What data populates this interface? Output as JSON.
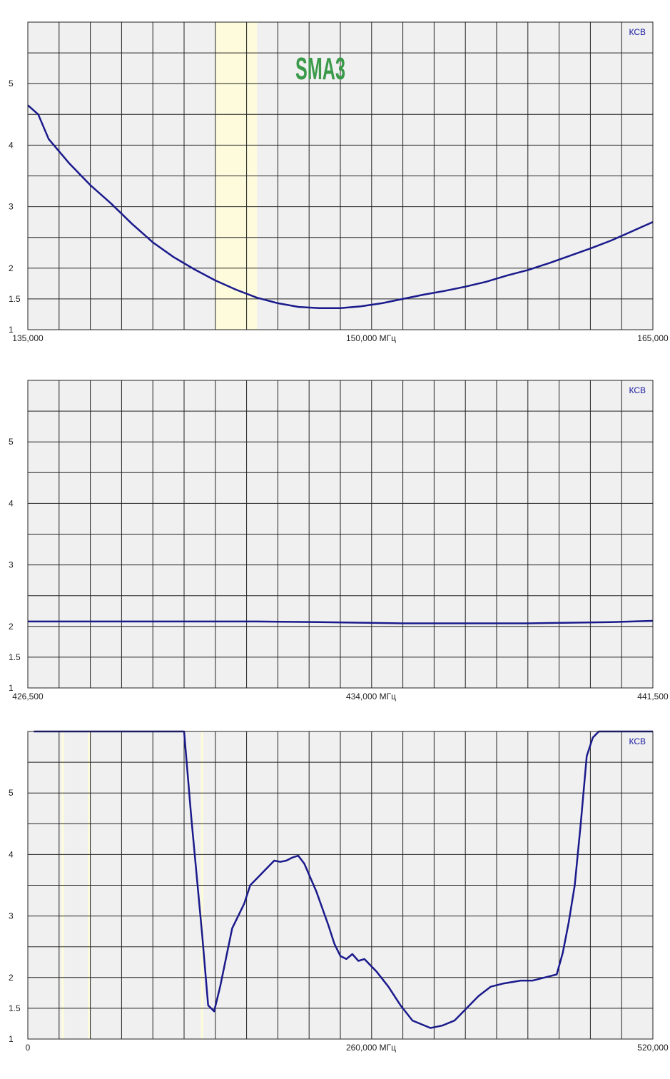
{
  "colors": {
    "background": "#ffffff",
    "plot_bg": "#f0f0f0",
    "grid": "#000000",
    "line": "#1a1a8c",
    "band": "#fdfbdc",
    "ksv_label": "#1a1aa0",
    "watermark": "#3a9a4a",
    "text": "#222222"
  },
  "chart_data": [
    {
      "type": "line",
      "title": "",
      "corner_label": "КСВ",
      "watermark": "SMA3",
      "x_tick_labels": [
        "135,000",
        "150,000 МГц",
        "165,000"
      ],
      "y_tick_labels": [
        "1",
        "1.5",
        "2",
        "3",
        "4",
        "5"
      ],
      "xlim": [
        135,
        165
      ],
      "y_ticks": [
        1,
        1.5,
        2,
        3,
        4,
        5
      ],
      "grid": true,
      "highlight_bands": [
        [
          144,
          146
        ]
      ],
      "series": [
        {
          "x": [
            135,
            135.5,
            136,
            137,
            138,
            139,
            140,
            141,
            142,
            143,
            144,
            145,
            146,
            147,
            148,
            149,
            150,
            151,
            152,
            153,
            154,
            155,
            156,
            157,
            158,
            159,
            160,
            161,
            162,
            163,
            164,
            165
          ],
          "y": [
            4.65,
            4.5,
            4.1,
            3.7,
            3.35,
            3.05,
            2.72,
            2.42,
            2.18,
            1.98,
            1.8,
            1.65,
            1.52,
            1.43,
            1.37,
            1.35,
            1.35,
            1.38,
            1.43,
            1.5,
            1.57,
            1.63,
            1.7,
            1.78,
            1.88,
            1.97,
            2.08,
            2.2,
            2.32,
            2.45,
            2.6,
            2.75
          ]
        }
      ]
    },
    {
      "type": "line",
      "title": "",
      "corner_label": "КСВ",
      "watermark": "",
      "x_tick_labels": [
        "426,500",
        "434,000 МГц",
        "441,500"
      ],
      "y_tick_labels": [
        "1",
        "1.5",
        "2",
        "3",
        "4",
        "5"
      ],
      "xlim": [
        426.5,
        441.5
      ],
      "y_ticks": [
        1,
        1.5,
        2,
        3,
        4,
        5
      ],
      "grid": true,
      "highlight_bands": [],
      "series": [
        {
          "x": [
            426.5,
            428,
            430,
            432,
            433.5,
            434.5,
            435.5,
            436.5,
            437.5,
            438.5,
            439.5,
            440.5,
            441.5
          ],
          "y": [
            2.08,
            2.08,
            2.08,
            2.08,
            2.07,
            2.06,
            2.05,
            2.05,
            2.05,
            2.05,
            2.06,
            2.07,
            2.09
          ]
        }
      ]
    },
    {
      "type": "line",
      "title": "",
      "corner_label": "КСВ",
      "watermark": "",
      "x_tick_labels": [
        "0",
        "260,000 МГц",
        "520,000"
      ],
      "y_tick_labels": [
        "1",
        "1.5",
        "2",
        "3",
        "4",
        "5"
      ],
      "xlim": [
        0,
        520
      ],
      "y_ticks": [
        1,
        1.5,
        2,
        3,
        4,
        5
      ],
      "grid": true,
      "highlight_bands": [
        [
          28,
          30
        ],
        [
          50,
          52
        ],
        [
          144,
          146
        ]
      ],
      "series": [
        {
          "x": [
            5,
            60,
            100,
            130,
            136,
            145,
            150,
            155,
            160,
            170,
            180,
            185,
            195,
            205,
            210,
            215,
            220,
            225,
            230,
            240,
            250,
            255,
            260,
            265,
            270,
            275,
            280,
            290,
            300,
            310,
            320,
            335,
            340,
            345,
            355,
            365,
            375,
            385,
            395,
            410,
            420,
            440,
            445,
            450,
            455,
            460,
            465,
            470,
            475,
            478,
            485,
            490,
            520
          ],
          "y": [
            6,
            6,
            6,
            6,
            4.6,
            2.7,
            1.55,
            1.45,
            1.85,
            2.8,
            3.2,
            3.5,
            3.7,
            3.9,
            3.88,
            3.9,
            3.95,
            3.98,
            3.85,
            3.4,
            2.85,
            2.55,
            2.35,
            2.3,
            2.38,
            2.27,
            2.3,
            2.1,
            1.85,
            1.55,
            1.3,
            1.18,
            1.2,
            1.22,
            1.3,
            1.5,
            1.7,
            1.85,
            1.9,
            1.95,
            1.95,
            2.05,
            2.4,
            2.9,
            3.5,
            4.5,
            5.6,
            5.9,
            6,
            6,
            6,
            6,
            6
          ]
        }
      ]
    }
  ]
}
